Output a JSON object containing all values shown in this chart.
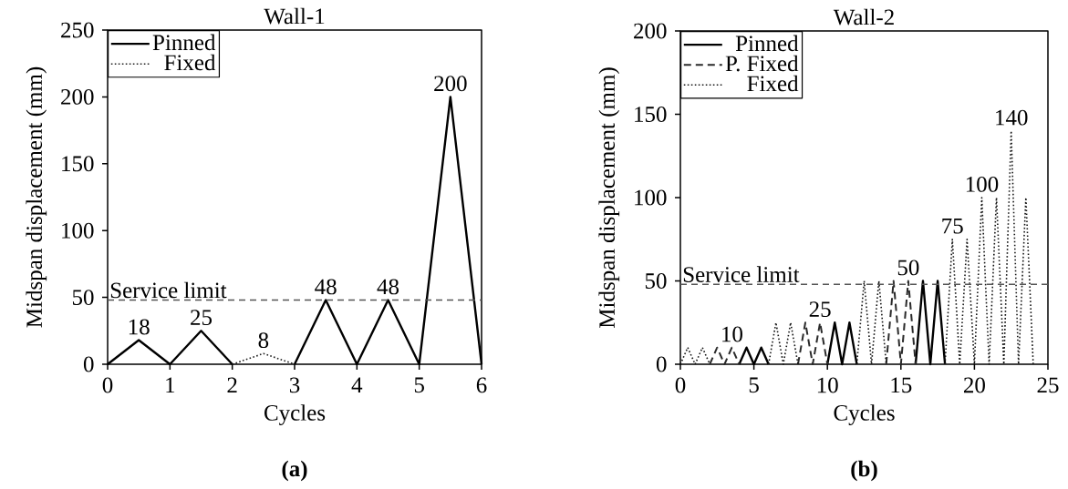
{
  "chart_data": [
    {
      "type": "line",
      "title": "Wall-1",
      "xlabel": "Cycles",
      "ylabel": "Midspan displacement (mm)",
      "xlim": [
        0,
        6
      ],
      "ylim": [
        0,
        250
      ],
      "xticks": [
        0,
        1,
        2,
        3,
        4,
        5,
        6
      ],
      "yticks": [
        0,
        50,
        100,
        150,
        200,
        250
      ],
      "legend": "top left",
      "ref_lines": [
        {
          "axis": "y",
          "value": 48,
          "label": "Service limit",
          "color": "#555555",
          "line_style": "dashed"
        }
      ],
      "annotations": [
        {
          "text": "18",
          "x": 0.5,
          "y": 18
        },
        {
          "text": "25",
          "x": 1.5,
          "y": 25
        },
        {
          "text": "8",
          "x": 2.5,
          "y": 8
        },
        {
          "text": "48",
          "x": 3.5,
          "y": 48
        },
        {
          "text": "48",
          "x": 4.5,
          "y": 48
        },
        {
          "text": "200",
          "x": 5.5,
          "y": 200
        },
        "(a)"
      ],
      "series": [
        {
          "name": "Pinned",
          "color": "#000000",
          "line_style": "solid",
          "x": [
            0,
            0.5,
            1,
            1.5,
            2,
            2.5,
            3,
            3.5,
            4,
            4.5,
            5,
            5.5,
            6
          ],
          "values": [
            0,
            18,
            0,
            25,
            0,
            null,
            0,
            48,
            0,
            48,
            0,
            200,
            0
          ]
        },
        {
          "name": "Fixed",
          "color": "#1e1e1e",
          "line_style": "dotted",
          "x": [
            2,
            2.5,
            3
          ],
          "values": [
            0,
            8,
            0
          ]
        }
      ]
    },
    {
      "type": "line",
      "title": "Wall-2",
      "xlabel": "Cycles",
      "ylabel": "Midspan displacement (mm)",
      "xlim": [
        0,
        25
      ],
      "ylim": [
        0,
        200
      ],
      "xticks": [
        0,
        5,
        10,
        15,
        20,
        25
      ],
      "yticks": [
        0,
        50,
        100,
        150,
        200
      ],
      "legend": "top left",
      "ref_lines": [
        {
          "axis": "y",
          "value": 48,
          "label": "Service limit",
          "color": "#555555",
          "line_style": "dashed"
        }
      ],
      "annotations": [
        {
          "text": "10",
          "x": 3.5,
          "y": 10
        },
        {
          "text": "25",
          "x": 9.5,
          "y": 25
        },
        {
          "text": "50",
          "x": 15.5,
          "y": 50
        },
        {
          "text": "75",
          "x": 18.5,
          "y": 75
        },
        {
          "text": "100",
          "x": 20.5,
          "y": 100
        },
        {
          "text": "140",
          "x": 22.5,
          "y": 140
        },
        "(b)"
      ],
      "series": [
        {
          "name": "Pinned",
          "color": "#000000",
          "line_style": "solid",
          "x": [
            4,
            4.5,
            5,
            5.5,
            6,
            8,
            10,
            10.5,
            11,
            11.5,
            12,
            14,
            16,
            16.5,
            17,
            17.5,
            18
          ],
          "values": [
            0,
            10,
            0,
            10,
            0,
            null,
            0,
            25,
            0,
            25,
            0,
            null,
            0,
            50,
            0,
            50,
            0
          ]
        },
        {
          "name": "P. Fixed",
          "color": "#2a2a2a",
          "line_style": "dashed",
          "x": [
            2,
            2.5,
            3,
            3.5,
            4,
            6,
            8,
            8.5,
            9,
            9.5,
            10,
            12,
            14,
            14.5,
            15,
            15.5,
            16
          ],
          "values": [
            0,
            10,
            0,
            10,
            0,
            null,
            0,
            25,
            0,
            25,
            0,
            null,
            0,
            50,
            0,
            50,
            0
          ]
        },
        {
          "name": "Fixed",
          "color": "#141414",
          "line_style": "dotted",
          "x": [
            0,
            0.5,
            1,
            1.5,
            2,
            4,
            6,
            6.5,
            7,
            7.5,
            8,
            10,
            12,
            12.5,
            13,
            13.5,
            14,
            16,
            18,
            18.5,
            19,
            19.5,
            20,
            20.5,
            21,
            21.5,
            22,
            22.5,
            23,
            23.5,
            24
          ],
          "values": [
            0,
            10,
            0,
            10,
            0,
            null,
            0,
            25,
            0,
            25,
            0,
            null,
            0,
            50,
            0,
            50,
            0,
            null,
            0,
            75,
            0,
            75,
            0,
            100,
            0,
            100,
            0,
            140,
            0,
            100,
            0
          ]
        }
      ]
    }
  ]
}
